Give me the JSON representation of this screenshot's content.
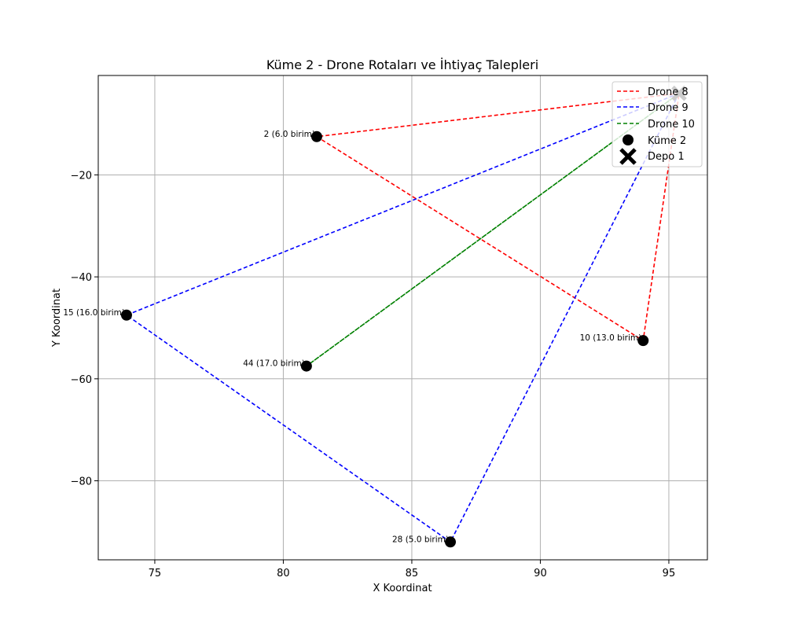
{
  "chart_data": {
    "type": "scatter",
    "title": "Küme 2 - Drone Rotaları ve İhtiyaç Talepleri",
    "xlabel": "X Koordinat",
    "ylabel": "Y Koordinat",
    "xlim": [
      72.8,
      96.5
    ],
    "ylim": [
      -95.5,
      -0.5
    ],
    "xticks": [
      75,
      80,
      85,
      90,
      95
    ],
    "yticks": [
      -20,
      -40,
      -60,
      -80
    ],
    "grid": true,
    "legend_position": "top-right",
    "depot": {
      "name": "Depo 1",
      "x": 95.4,
      "y": -4.0,
      "color": "#000000"
    },
    "points_series": {
      "name": "Küme 2",
      "color": "#000000"
    },
    "points": [
      {
        "x": 81.3,
        "y": -12.5,
        "label": "2 (6.0 birim)"
      },
      {
        "x": 94.0,
        "y": -52.5,
        "label": "10 (13.0 birim)"
      },
      {
        "x": 73.9,
        "y": -47.5,
        "label": "15 (16.0 birim)"
      },
      {
        "x": 80.9,
        "y": -57.5,
        "label": "44 (17.0 birim)"
      },
      {
        "x": 86.5,
        "y": -92.0,
        "label": "28 (5.0 birim)"
      }
    ],
    "series": [
      {
        "name": "Drone 8",
        "color": "#ff0000",
        "x": [
          95.4,
          81.3,
          94.0,
          95.4
        ],
        "y": [
          -4.0,
          -12.5,
          -52.5,
          -4.0
        ]
      },
      {
        "name": "Drone 9",
        "color": "#0000ff",
        "x": [
          95.4,
          73.9,
          86.5,
          95.4
        ],
        "y": [
          -4.0,
          -47.5,
          -92.0,
          -4.0
        ]
      },
      {
        "name": "Drone 10",
        "color": "#008000",
        "x": [
          95.4,
          80.9,
          95.4
        ],
        "y": [
          -4.0,
          -57.5,
          -4.0
        ]
      }
    ]
  }
}
